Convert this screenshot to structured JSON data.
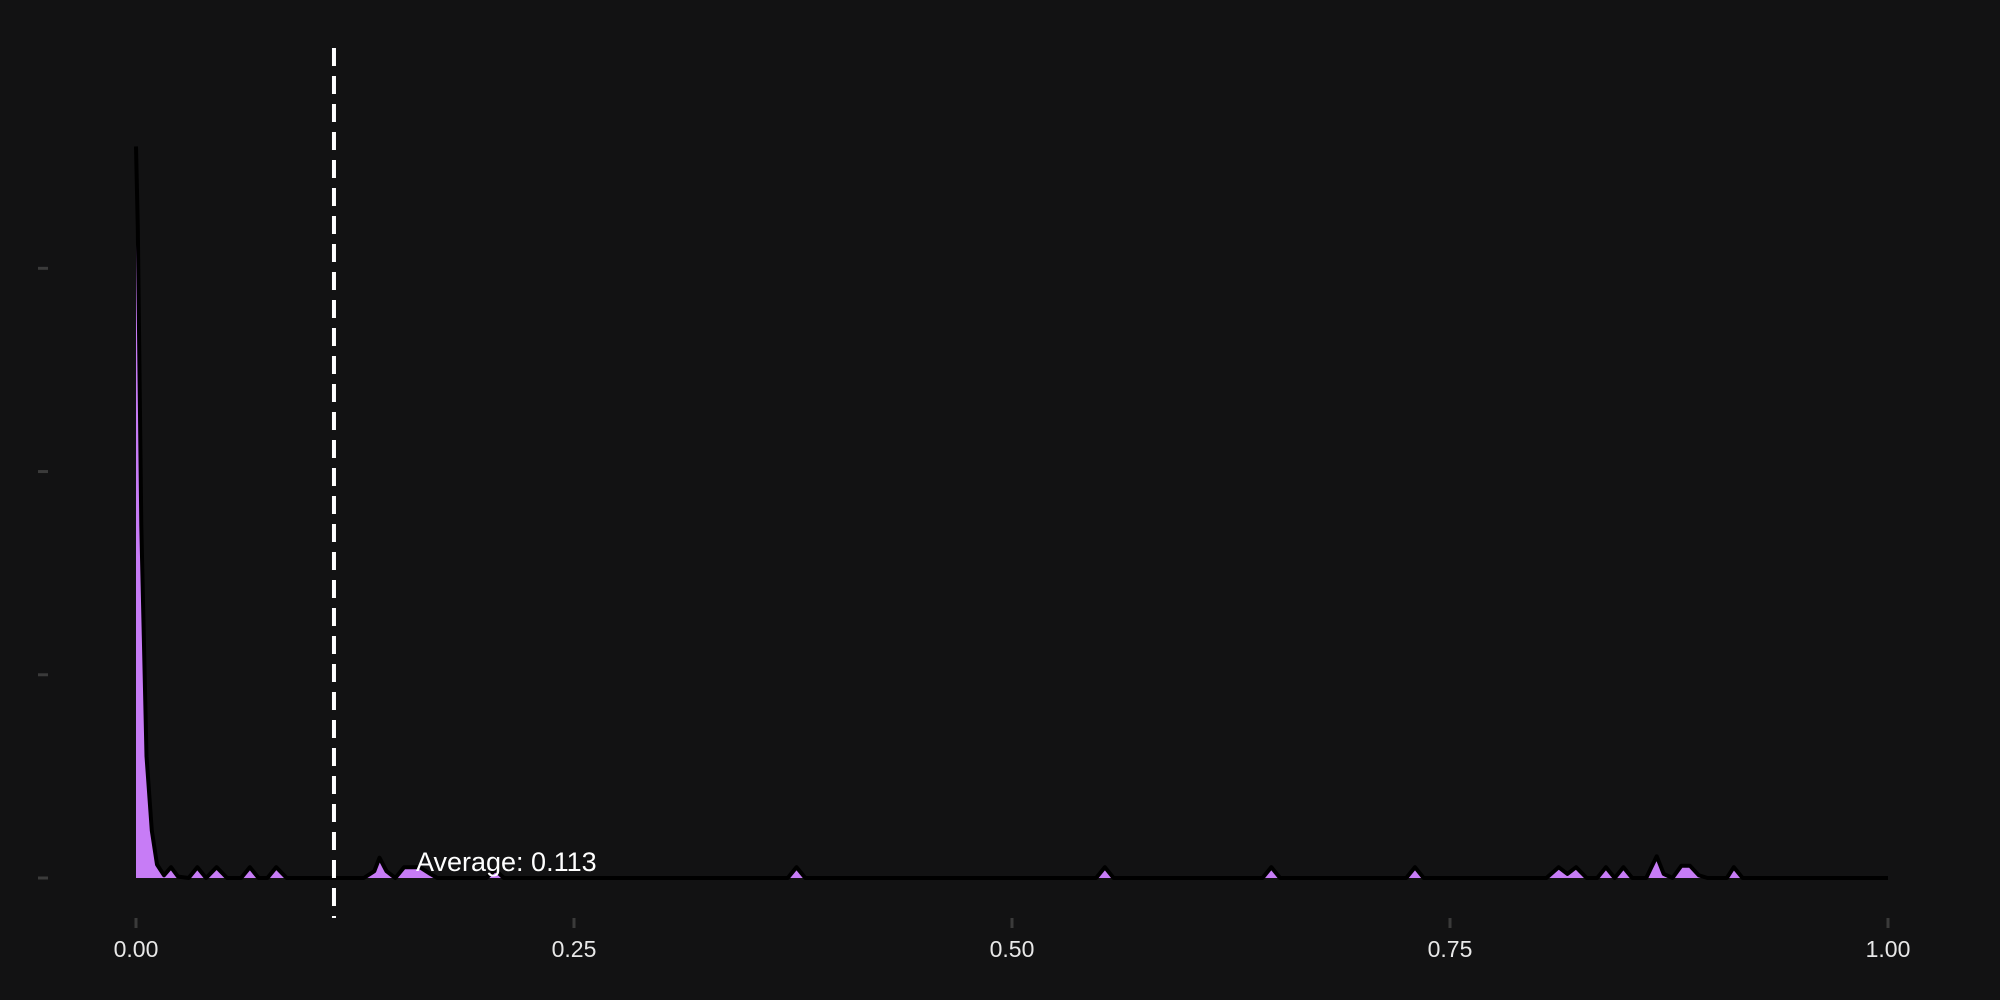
{
  "chart_data": {
    "type": "area",
    "title": "",
    "xlabel": "",
    "ylabel": "",
    "xlim": [
      0,
      1
    ],
    "ylim": [
      0,
      62
    ],
    "x_ticks": [
      0,
      0.25,
      0.5,
      0.75,
      1
    ],
    "x_tick_labels": [
      "0.00",
      "0.25",
      "0.50",
      "0.75",
      "1.00"
    ],
    "y_ticks": [
      0,
      15,
      30,
      45
    ],
    "y_tick_labels": [
      "",
      "",
      "",
      ""
    ],
    "grid": false,
    "colors": {
      "fill": "#c77cf6",
      "line": "#000000",
      "mean_line": "#ffffff",
      "background": "#121213"
    },
    "mean_line": {
      "x": 0.113,
      "label": "Average: 0.113"
    },
    "series": [
      {
        "x": [
          0,
          0.001,
          0.003,
          0.006,
          0.009,
          0.012,
          0.016,
          0.02,
          0.024,
          0.03,
          0.035,
          0.04,
          0.046,
          0.052,
          0.06,
          0.065,
          0.07,
          0.075,
          0.08,
          0.086,
          0.1,
          0.13,
          0.136,
          0.139,
          0.143,
          0.148,
          0.153,
          0.157,
          0.162,
          0.168,
          0.172,
          0.2,
          0.205,
          0.21,
          0.372,
          0.377,
          0.382,
          0.548,
          0.553,
          0.558,
          0.643,
          0.648,
          0.653,
          0.725,
          0.73,
          0.735,
          0.805,
          0.812,
          0.817,
          0.822,
          0.828,
          0.834,
          0.839,
          0.844,
          0.849,
          0.854,
          0.862,
          0.868,
          0.872,
          0.877,
          0.882,
          0.887,
          0.892,
          0.897,
          0.908,
          0.912,
          0.917,
          1
        ],
        "y": [
          54,
          48,
          26,
          9,
          3.5,
          1,
          0.2,
          0.8,
          0.1,
          0,
          0.8,
          0,
          0.8,
          0,
          0,
          0.8,
          0,
          0,
          0.8,
          0,
          0,
          0,
          0.5,
          1.5,
          0.5,
          0,
          0.8,
          0.8,
          0.8,
          0.3,
          0,
          0,
          0.6,
          0,
          0,
          0.8,
          0,
          0,
          0.8,
          0,
          0,
          0.8,
          0,
          0,
          0.8,
          0,
          0,
          0.8,
          0.3,
          0.8,
          0,
          0,
          0.8,
          0,
          0.8,
          0,
          0,
          1.6,
          0.3,
          0,
          0.9,
          0.9,
          0.2,
          0,
          0,
          0.8,
          0,
          0
        ]
      }
    ]
  }
}
